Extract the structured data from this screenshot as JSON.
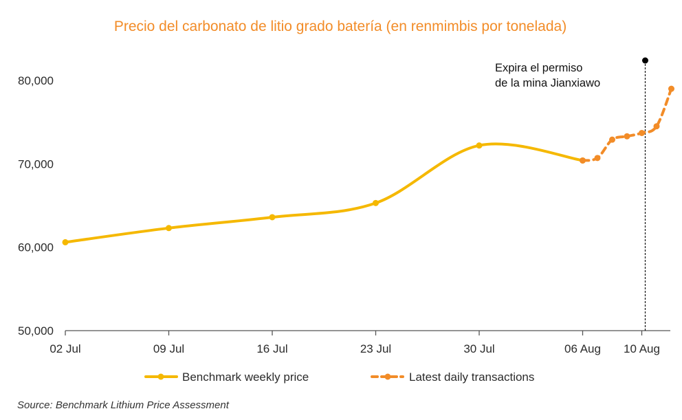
{
  "chart_data": {
    "type": "line",
    "title": "Precio del carbonato de litio grado batería (en renmimbis por tonelada)",
    "xlabel": "",
    "ylabel": "",
    "x_tick_labels": [
      "02 Jul",
      "09 Jul",
      "16 Jul",
      "23 Jul",
      "30 Jul",
      "06 Aug",
      "10 Aug"
    ],
    "y_ticks": [
      "50,000",
      "60,000",
      "70,000",
      "80,000"
    ],
    "ylim": [
      50000,
      80000
    ],
    "grid": false,
    "legend_position": "bottom",
    "series": [
      {
        "name": "Benchmark weekly price",
        "style": "solid",
        "color": "#f5b800",
        "points": [
          {
            "x": "2024-07-02",
            "y": 60600
          },
          {
            "x": "2024-07-09",
            "y": 62300
          },
          {
            "x": "2024-07-16",
            "y": 63600
          },
          {
            "x": "2024-07-23",
            "y": 65300
          },
          {
            "x": "2024-07-30",
            "y": 72200
          },
          {
            "x": "2024-08-06",
            "y": 70400
          }
        ]
      },
      {
        "name": "Latest daily transactions",
        "style": "dashed",
        "color": "#f28c28",
        "points": [
          {
            "x": "2024-08-06",
            "y": 70400
          },
          {
            "x": "2024-08-07",
            "y": 70700
          },
          {
            "x": "2024-08-08",
            "y": 72900
          },
          {
            "x": "2024-08-09",
            "y": 73300
          },
          {
            "x": "2024-08-10",
            "y": 73700
          },
          {
            "x": "2024-08-11",
            "y": 74500
          },
          {
            "x": "2024-08-12",
            "y": 79000
          }
        ]
      }
    ],
    "annotations": [
      {
        "text_lines": [
          "Expira el permiso",
          "de la mina Jianxiawo"
        ],
        "x": "2024-08-10"
      }
    ]
  },
  "source": "Source: Benchmark Lithium Price Assessment"
}
